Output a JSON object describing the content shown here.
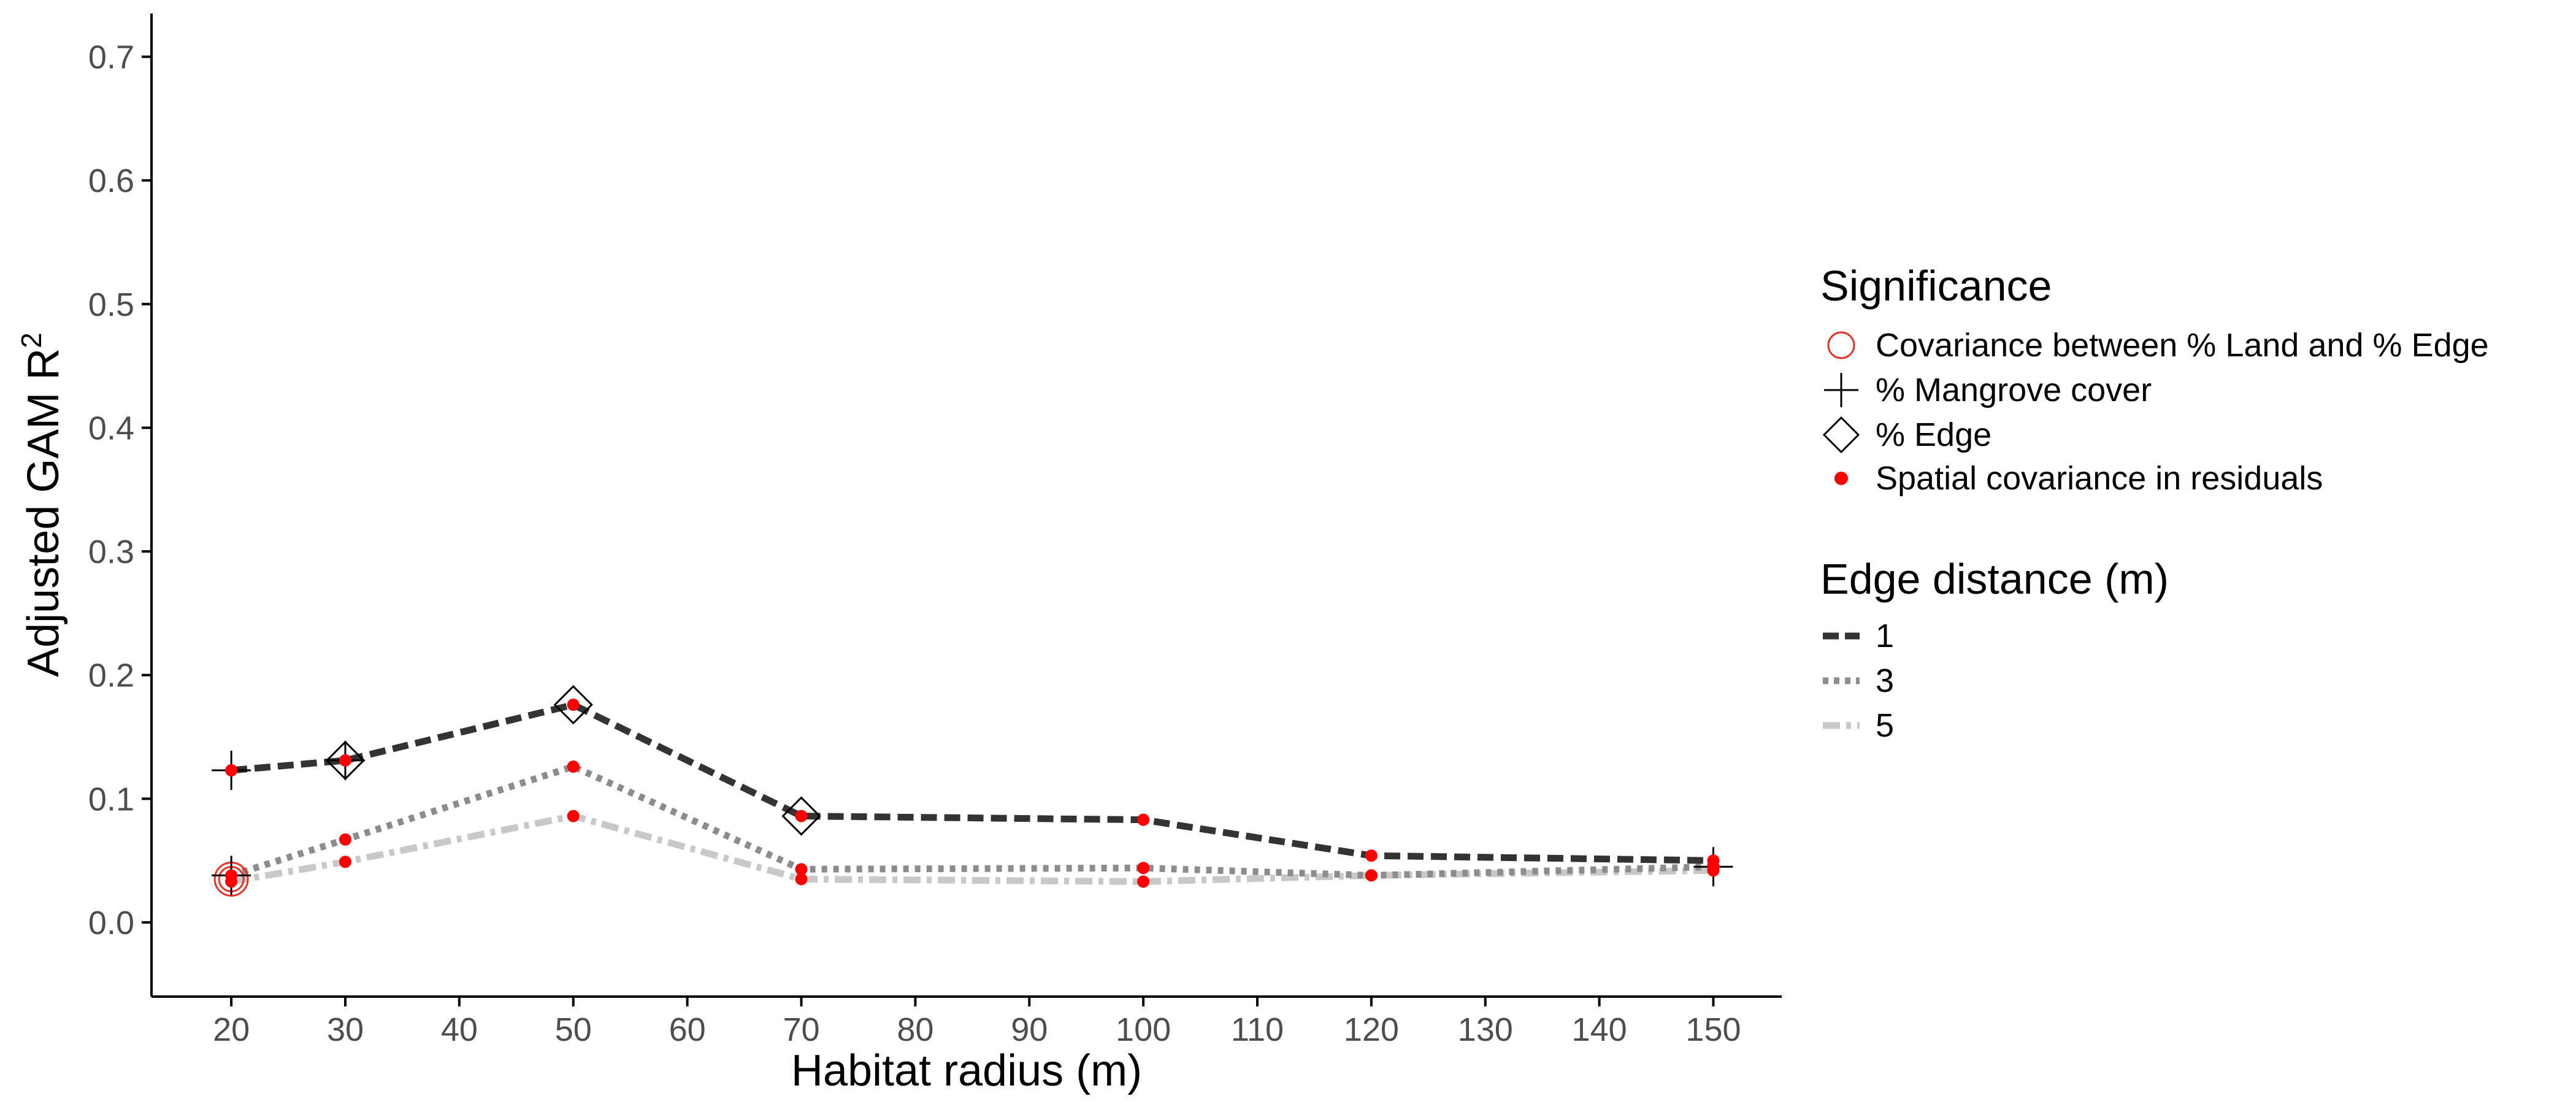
{
  "chart_data": {
    "type": "line",
    "xlabel": "Habitat radius (m)",
    "ylabel": "Adjusted GAM R",
    "ylabel_superscript": "2",
    "xlim": [
      13,
      156
    ],
    "ylim": [
      -0.06,
      0.735
    ],
    "x_ticks": [
      20,
      30,
      40,
      50,
      60,
      70,
      80,
      90,
      100,
      110,
      120,
      130,
      140,
      150
    ],
    "y_ticks": [
      0.0,
      0.1,
      0.2,
      0.3,
      0.4,
      0.5,
      0.6,
      0.7
    ],
    "x": [
      20,
      30,
      50,
      70,
      100,
      120,
      150
    ],
    "grid": false,
    "legend_position": "right",
    "series": [
      {
        "name": "1",
        "color": "#333333",
        "dash": "dashed",
        "values": [
          0.123,
          0.131,
          0.176,
          0.086,
          0.083,
          0.054,
          0.05
        ]
      },
      {
        "name": "3",
        "color": "#8c8c8c",
        "dash": "dotted",
        "values": [
          0.038,
          0.067,
          0.126,
          0.043,
          0.044,
          0.038,
          0.045
        ]
      },
      {
        "name": "5",
        "color": "#c8c8c8",
        "dash": "dashdot",
        "values": [
          0.033,
          0.049,
          0.086,
          0.035,
          0.033,
          0.038,
          0.042
        ]
      }
    ],
    "markers": {
      "covariance_land_edge": [
        {
          "x": 20,
          "y": 0.035
        }
      ],
      "mangrove_cover": [
        {
          "x": 20,
          "y": 0.123
        },
        {
          "x": 20,
          "y": 0.038
        },
        {
          "x": 30,
          "y": 0.131
        },
        {
          "x": 150,
          "y": 0.045
        }
      ],
      "edge": [
        {
          "x": 30,
          "y": 0.131
        },
        {
          "x": 50,
          "y": 0.176
        },
        {
          "x": 70,
          "y": 0.086
        }
      ],
      "spatial_covariance": [
        {
          "x": 20,
          "y": 0.123
        },
        {
          "x": 20,
          "y": 0.038
        },
        {
          "x": 20,
          "y": 0.033
        },
        {
          "x": 30,
          "y": 0.131
        },
        {
          "x": 30,
          "y": 0.067
        },
        {
          "x": 30,
          "y": 0.049
        },
        {
          "x": 50,
          "y": 0.176
        },
        {
          "x": 50,
          "y": 0.126
        },
        {
          "x": 50,
          "y": 0.086
        },
        {
          "x": 70,
          "y": 0.086
        },
        {
          "x": 70,
          "y": 0.043
        },
        {
          "x": 70,
          "y": 0.035
        },
        {
          "x": 100,
          "y": 0.083
        },
        {
          "x": 100,
          "y": 0.044
        },
        {
          "x": 100,
          "y": 0.033
        },
        {
          "x": 120,
          "y": 0.054
        },
        {
          "x": 120,
          "y": 0.038
        },
        {
          "x": 150,
          "y": 0.05
        },
        {
          "x": 150,
          "y": 0.045
        },
        {
          "x": 150,
          "y": 0.042
        }
      ]
    },
    "legends": {
      "significance": {
        "title": "Significance",
        "items": [
          {
            "label": "Covariance between % Land and % Edge",
            "symbol": "open-circle",
            "color": "#e8302a"
          },
          {
            "label": "% Mangrove cover",
            "symbol": "plus",
            "color": "#000000"
          },
          {
            "label": "% Edge",
            "symbol": "open-diamond",
            "color": "#000000"
          },
          {
            "label": "Spatial covariance in residuals",
            "symbol": "filled-dot",
            "color": "#ff0000"
          }
        ]
      },
      "edge_distance": {
        "title": "Edge distance (m)",
        "items": [
          {
            "label": "1",
            "color": "#333333",
            "dash": "dashed"
          },
          {
            "label": "3",
            "color": "#8c8c8c",
            "dash": "dotted"
          },
          {
            "label": "5",
            "color": "#c8c8c8",
            "dash": "dashdot"
          }
        ]
      }
    }
  }
}
